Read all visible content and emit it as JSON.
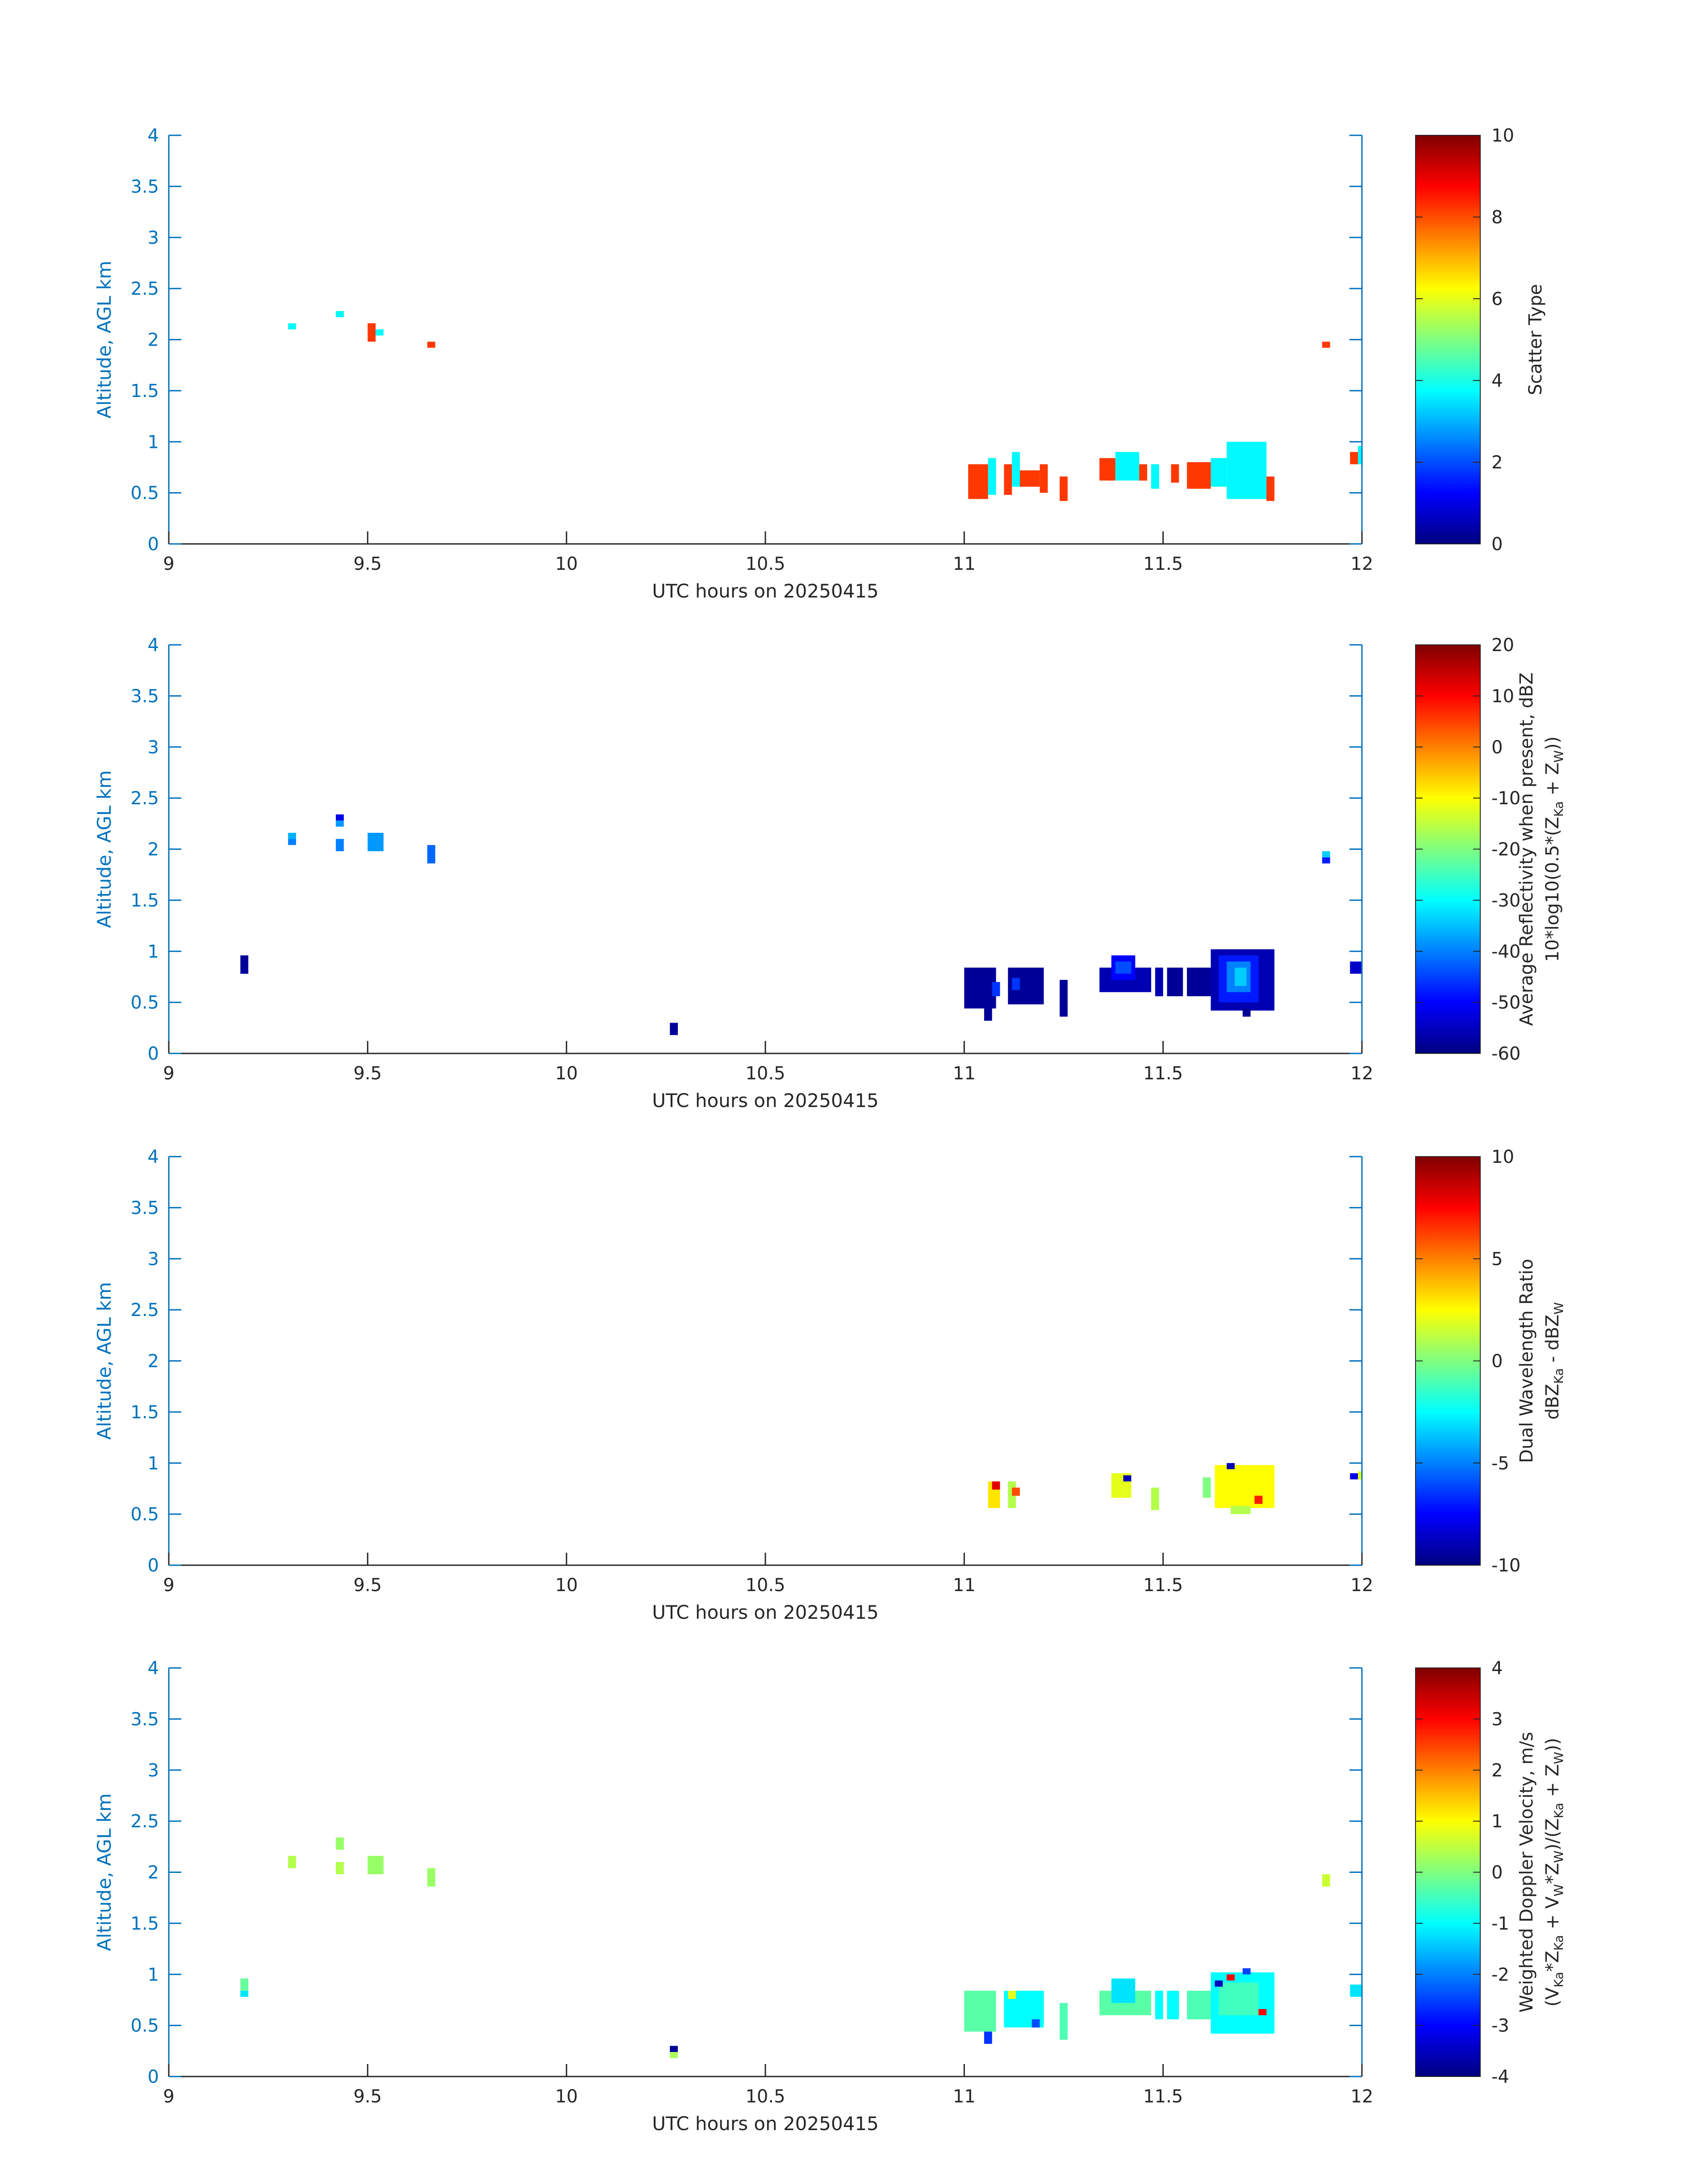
{
  "chart_data": [
    {
      "type": "heatmap",
      "xlabel": "UTC hours on 20250415",
      "ylabel": "Altitude, AGL km",
      "xlim": [
        9,
        12
      ],
      "ylim": [
        0,
        4
      ],
      "x_ticks": [
        "9",
        "9.5",
        "10",
        "10.5",
        "11",
        "11.5",
        "12"
      ],
      "y_ticks": [
        "0",
        "0.5",
        "1",
        "1.5",
        "2",
        "2.5",
        "3",
        "3.5",
        "4"
      ],
      "colorbar": {
        "label_lines": [
          {
            "text": "Scatter Type"
          }
        ],
        "range": [
          0,
          10
        ],
        "ticks": [
          "0",
          "2",
          "4",
          "6",
          "8",
          "10"
        ]
      },
      "cells": [
        {
          "x0": 9.3,
          "x1": 9.32,
          "y0": 2.1,
          "y1": 2.16,
          "v": 3.7
        },
        {
          "x0": 9.42,
          "x1": 9.44,
          "y0": 2.22,
          "y1": 2.28,
          "v": 3.7
        },
        {
          "x0": 9.5,
          "x1": 9.52,
          "y0": 1.98,
          "y1": 2.16,
          "v": 8.2
        },
        {
          "x0": 9.52,
          "x1": 9.54,
          "y0": 2.04,
          "y1": 2.1,
          "v": 3.7
        },
        {
          "x0": 9.65,
          "x1": 9.67,
          "y0": 1.92,
          "y1": 1.98,
          "v": 8.2
        },
        {
          "x0": 11.01,
          "x1": 11.06,
          "y0": 0.44,
          "y1": 0.78,
          "v": 8.2
        },
        {
          "x0": 11.06,
          "x1": 11.08,
          "y0": 0.48,
          "y1": 0.84,
          "v": 3.7
        },
        {
          "x0": 11.1,
          "x1": 11.12,
          "y0": 0.48,
          "y1": 0.78,
          "v": 8.2
        },
        {
          "x0": 11.12,
          "x1": 11.14,
          "y0": 0.56,
          "y1": 0.9,
          "v": 3.7
        },
        {
          "x0": 11.14,
          "x1": 11.19,
          "y0": 0.56,
          "y1": 0.72,
          "v": 8.2
        },
        {
          "x0": 11.19,
          "x1": 11.21,
          "y0": 0.5,
          "y1": 0.78,
          "v": 8.2
        },
        {
          "x0": 11.24,
          "x1": 11.26,
          "y0": 0.42,
          "y1": 0.66,
          "v": 8.2
        },
        {
          "x0": 11.34,
          "x1": 11.38,
          "y0": 0.62,
          "y1": 0.84,
          "v": 8.2
        },
        {
          "x0": 11.38,
          "x1": 11.44,
          "y0": 0.62,
          "y1": 0.9,
          "v": 3.7
        },
        {
          "x0": 11.44,
          "x1": 11.46,
          "y0": 0.62,
          "y1": 0.78,
          "v": 8.2
        },
        {
          "x0": 11.47,
          "x1": 11.49,
          "y0": 0.54,
          "y1": 0.78,
          "v": 3.7
        },
        {
          "x0": 11.52,
          "x1": 11.54,
          "y0": 0.6,
          "y1": 0.78,
          "v": 8.2
        },
        {
          "x0": 11.56,
          "x1": 11.62,
          "y0": 0.54,
          "y1": 0.8,
          "v": 8.2
        },
        {
          "x0": 11.62,
          "x1": 11.66,
          "y0": 0.56,
          "y1": 0.84,
          "v": 3.7
        },
        {
          "x0": 11.66,
          "x1": 11.76,
          "y0": 0.44,
          "y1": 1.0,
          "v": 3.7
        },
        {
          "x0": 11.76,
          "x1": 11.78,
          "y0": 0.42,
          "y1": 0.66,
          "v": 8.2
        },
        {
          "x0": 11.9,
          "x1": 11.92,
          "y0": 1.92,
          "y1": 1.98,
          "v": 8.2
        },
        {
          "x0": 11.97,
          "x1": 11.99,
          "y0": 0.78,
          "y1": 0.9,
          "v": 8.2
        },
        {
          "x0": 11.99,
          "x1": 12.0,
          "y0": 0.78,
          "y1": 0.96,
          "v": 3.7
        }
      ]
    },
    {
      "type": "heatmap",
      "xlabel": "UTC hours on 20250415",
      "ylabel": "Altitude, AGL km",
      "xlim": [
        9,
        12
      ],
      "ylim": [
        0,
        4
      ],
      "x_ticks": [
        "9",
        "9.5",
        "10",
        "10.5",
        "11",
        "11.5",
        "12"
      ],
      "y_ticks": [
        "0",
        "0.5",
        "1",
        "1.5",
        "2",
        "2.5",
        "3",
        "3.5",
        "4"
      ],
      "colorbar": {
        "label_lines": [
          {
            "text": "Average Reflectivity when present, dBZ"
          },
          {
            "text": "10*log10(0.5*(Z",
            "parts": [
              [
                "Ka",
                " + Z"
              ],
              [
                "W",
                "))"
              ]
            ]
          }
        ],
        "range": [
          -60,
          20
        ],
        "ticks": [
          "-60",
          "-50",
          "-40",
          "-30",
          "-20",
          "-10",
          "0",
          "10",
          "20"
        ]
      },
      "cells": [
        {
          "x0": 9.18,
          "x1": 9.2,
          "y0": 0.78,
          "y1": 0.96,
          "v": -58
        },
        {
          "x0": 9.3,
          "x1": 9.32,
          "y0": 2.04,
          "y1": 2.1,
          "v": -40
        },
        {
          "x0": 9.3,
          "x1": 9.32,
          "y0": 2.1,
          "y1": 2.16,
          "v": -36
        },
        {
          "x0": 9.42,
          "x1": 9.44,
          "y0": 1.98,
          "y1": 2.1,
          "v": -40
        },
        {
          "x0": 9.42,
          "x1": 9.44,
          "y0": 2.22,
          "y1": 2.28,
          "v": -38
        },
        {
          "x0": 9.42,
          "x1": 9.44,
          "y0": 2.28,
          "y1": 2.34,
          "v": -52
        },
        {
          "x0": 9.5,
          "x1": 9.54,
          "y0": 1.98,
          "y1": 2.16,
          "v": -38
        },
        {
          "x0": 9.65,
          "x1": 9.67,
          "y0": 1.86,
          "y1": 2.04,
          "v": -42
        },
        {
          "x0": 10.26,
          "x1": 10.28,
          "y0": 0.18,
          "y1": 0.3,
          "v": -58
        },
        {
          "x0": 11.0,
          "x1": 11.08,
          "y0": 0.44,
          "y1": 0.84,
          "v": -58
        },
        {
          "x0": 11.05,
          "x1": 11.07,
          "y0": 0.32,
          "y1": 0.5,
          "v": -58
        },
        {
          "x0": 11.07,
          "x1": 11.09,
          "y0": 0.56,
          "y1": 0.7,
          "v": -46
        },
        {
          "x0": 11.11,
          "x1": 11.2,
          "y0": 0.48,
          "y1": 0.84,
          "v": -58
        },
        {
          "x0": 11.12,
          "x1": 11.14,
          "y0": 0.62,
          "y1": 0.74,
          "v": -46
        },
        {
          "x0": 11.24,
          "x1": 11.26,
          "y0": 0.36,
          "y1": 0.72,
          "v": -58
        },
        {
          "x0": 11.34,
          "x1": 11.47,
          "y0": 0.6,
          "y1": 0.84,
          "v": -56
        },
        {
          "x0": 11.37,
          "x1": 11.43,
          "y0": 0.72,
          "y1": 0.96,
          "v": -50
        },
        {
          "x0": 11.38,
          "x1": 11.42,
          "y0": 0.78,
          "y1": 0.9,
          "v": -44
        },
        {
          "x0": 11.48,
          "x1": 11.5,
          "y0": 0.56,
          "y1": 0.84,
          "v": -56
        },
        {
          "x0": 11.51,
          "x1": 11.55,
          "y0": 0.56,
          "y1": 0.84,
          "v": -58
        },
        {
          "x0": 11.56,
          "x1": 11.63,
          "y0": 0.56,
          "y1": 0.84,
          "v": -58
        },
        {
          "x0": 11.62,
          "x1": 11.78,
          "y0": 0.42,
          "y1": 1.02,
          "v": -56
        },
        {
          "x0": 11.64,
          "x1": 11.74,
          "y0": 0.5,
          "y1": 0.96,
          "v": -48
        },
        {
          "x0": 11.66,
          "x1": 11.72,
          "y0": 0.6,
          "y1": 0.9,
          "v": -40
        },
        {
          "x0": 11.68,
          "x1": 11.71,
          "y0": 0.66,
          "y1": 0.84,
          "v": -34
        },
        {
          "x0": 11.7,
          "x1": 11.72,
          "y0": 0.36,
          "y1": 0.44,
          "v": -58
        },
        {
          "x0": 11.9,
          "x1": 11.92,
          "y0": 1.86,
          "y1": 1.92,
          "v": -48
        },
        {
          "x0": 11.9,
          "x1": 11.92,
          "y0": 1.92,
          "y1": 1.98,
          "v": -34
        },
        {
          "x0": 11.97,
          "x1": 12.0,
          "y0": 0.78,
          "y1": 0.9,
          "v": -54
        }
      ]
    },
    {
      "type": "heatmap",
      "xlabel": "UTC hours on 20250415",
      "ylabel": "Altitude, AGL km",
      "xlim": [
        9,
        12
      ],
      "ylim": [
        0,
        4
      ],
      "x_ticks": [
        "9",
        "9.5",
        "10",
        "10.5",
        "11",
        "11.5",
        "12"
      ],
      "y_ticks": [
        "0",
        "0.5",
        "1",
        "1.5",
        "2",
        "2.5",
        "3",
        "3.5",
        "4"
      ],
      "colorbar": {
        "label_lines": [
          {
            "text": "Dual Wavelength Ratio"
          },
          {
            "text": "dBZ",
            "parts": [
              [
                "Ka",
                " - dBZ"
              ],
              [
                "W",
                ""
              ]
            ]
          }
        ],
        "range": [
          -10,
          10
        ],
        "ticks": [
          "-10",
          "-5",
          "0",
          "5",
          "10"
        ]
      },
      "cells": [
        {
          "x0": 11.06,
          "x1": 11.09,
          "y0": 0.56,
          "y1": 0.82,
          "v": 3
        },
        {
          "x0": 11.07,
          "x1": 11.09,
          "y0": 0.74,
          "y1": 0.82,
          "v": 8
        },
        {
          "x0": 11.11,
          "x1": 11.13,
          "y0": 0.56,
          "y1": 0.82,
          "v": 1
        },
        {
          "x0": 11.12,
          "x1": 11.14,
          "y0": 0.68,
          "y1": 0.76,
          "v": 6
        },
        {
          "x0": 11.37,
          "x1": 11.42,
          "y0": 0.66,
          "y1": 0.9,
          "v": 2
        },
        {
          "x0": 11.4,
          "x1": 11.42,
          "y0": 0.82,
          "y1": 0.88,
          "v": -9
        },
        {
          "x0": 11.47,
          "x1": 11.49,
          "y0": 0.54,
          "y1": 0.76,
          "v": 1
        },
        {
          "x0": 11.6,
          "x1": 11.62,
          "y0": 0.66,
          "y1": 0.86,
          "v": 0
        },
        {
          "x0": 11.63,
          "x1": 11.78,
          "y0": 0.56,
          "y1": 0.98,
          "v": 2.5
        },
        {
          "x0": 11.67,
          "x1": 11.72,
          "y0": 0.5,
          "y1": 0.58,
          "v": 1
        },
        {
          "x0": 11.66,
          "x1": 11.68,
          "y0": 0.94,
          "y1": 1.0,
          "v": -9
        },
        {
          "x0": 11.73,
          "x1": 11.75,
          "y0": 0.6,
          "y1": 0.68,
          "v": 7
        },
        {
          "x0": 11.97,
          "x1": 11.99,
          "y0": 0.84,
          "y1": 0.9,
          "v": -8
        },
        {
          "x0": 11.99,
          "x1": 12.0,
          "y0": 0.84,
          "y1": 0.92,
          "v": 2
        }
      ]
    },
    {
      "type": "heatmap",
      "xlabel": "UTC hours on 20250415",
      "ylabel": "Altitude, AGL km",
      "xlim": [
        9,
        12
      ],
      "ylim": [
        0,
        4
      ],
      "x_ticks": [
        "9",
        "9.5",
        "10",
        "10.5",
        "11",
        "11.5",
        "12"
      ],
      "y_ticks": [
        "0",
        "0.5",
        "1",
        "1.5",
        "2",
        "2.5",
        "3",
        "3.5",
        "4"
      ],
      "colorbar": {
        "label_lines": [
          {
            "text": "Weighted Doppler Velocity, m/s"
          },
          {
            "text": "(V",
            "parts": [
              [
                "Ka",
                "*Z"
              ],
              [
                "Ka",
                " + V"
              ],
              [
                "W",
                "*Z"
              ],
              [
                "W",
                ")/(Z"
              ],
              [
                "Ka",
                " + Z"
              ],
              [
                "W",
                "))"
              ]
            ]
          }
        ],
        "range": [
          -4,
          4
        ],
        "ticks": [
          "-4",
          "-3",
          "-2",
          "-1",
          "0",
          "1",
          "2",
          "3",
          "4"
        ]
      },
      "cells": [
        {
          "x0": 9.18,
          "x1": 9.2,
          "y0": 0.84,
          "y1": 0.96,
          "v": -0.2
        },
        {
          "x0": 9.18,
          "x1": 9.2,
          "y0": 0.78,
          "y1": 0.84,
          "v": -1.2
        },
        {
          "x0": 9.3,
          "x1": 9.32,
          "y0": 2.04,
          "y1": 2.16,
          "v": 0.4
        },
        {
          "x0": 9.42,
          "x1": 9.44,
          "y0": 1.98,
          "y1": 2.1,
          "v": 0.4
        },
        {
          "x0": 9.42,
          "x1": 9.44,
          "y0": 2.22,
          "y1": 2.34,
          "v": 0.2
        },
        {
          "x0": 9.5,
          "x1": 9.54,
          "y0": 1.98,
          "y1": 2.16,
          "v": 0.2
        },
        {
          "x0": 9.65,
          "x1": 9.67,
          "y0": 1.86,
          "y1": 2.04,
          "v": 0.2
        },
        {
          "x0": 10.26,
          "x1": 10.28,
          "y0": 0.24,
          "y1": 0.3,
          "v": -3.8
        },
        {
          "x0": 10.26,
          "x1": 10.28,
          "y0": 0.18,
          "y1": 0.24,
          "v": 0.3
        },
        {
          "x0": 11.0,
          "x1": 11.08,
          "y0": 0.44,
          "y1": 0.84,
          "v": -0.3
        },
        {
          "x0": 11.05,
          "x1": 11.07,
          "y0": 0.32,
          "y1": 0.44,
          "v": -2.6
        },
        {
          "x0": 11.1,
          "x1": 11.2,
          "y0": 0.48,
          "y1": 0.84,
          "v": -1.0
        },
        {
          "x0": 11.11,
          "x1": 11.13,
          "y0": 0.76,
          "y1": 0.84,
          "v": 0.8
        },
        {
          "x0": 11.17,
          "x1": 11.19,
          "y0": 0.48,
          "y1": 0.56,
          "v": -2.4
        },
        {
          "x0": 11.24,
          "x1": 11.26,
          "y0": 0.36,
          "y1": 0.72,
          "v": -0.4
        },
        {
          "x0": 11.34,
          "x1": 11.47,
          "y0": 0.6,
          "y1": 0.84,
          "v": -0.3
        },
        {
          "x0": 11.37,
          "x1": 11.43,
          "y0": 0.72,
          "y1": 0.96,
          "v": -1.2
        },
        {
          "x0": 11.48,
          "x1": 11.5,
          "y0": 0.56,
          "y1": 0.84,
          "v": -1.0
        },
        {
          "x0": 11.51,
          "x1": 11.54,
          "y0": 0.56,
          "y1": 0.84,
          "v": -1.0
        },
        {
          "x0": 11.56,
          "x1": 11.63,
          "y0": 0.56,
          "y1": 0.84,
          "v": -0.4
        },
        {
          "x0": 11.62,
          "x1": 11.78,
          "y0": 0.42,
          "y1": 1.02,
          "v": -1.0
        },
        {
          "x0": 11.64,
          "x1": 11.74,
          "y0": 0.6,
          "y1": 0.92,
          "v": -0.5
        },
        {
          "x0": 11.66,
          "x1": 11.68,
          "y0": 0.94,
          "y1": 1.0,
          "v": 3.0
        },
        {
          "x0": 11.63,
          "x1": 11.65,
          "y0": 0.88,
          "y1": 0.94,
          "v": -3.5
        },
        {
          "x0": 11.7,
          "x1": 11.72,
          "y0": 1.0,
          "y1": 1.06,
          "v": -2.5
        },
        {
          "x0": 11.74,
          "x1": 11.76,
          "y0": 0.6,
          "y1": 0.66,
          "v": 3.0
        },
        {
          "x0": 11.9,
          "x1": 11.92,
          "y0": 1.86,
          "y1": 1.98,
          "v": 0.6
        },
        {
          "x0": 11.97,
          "x1": 12.0,
          "y0": 0.78,
          "y1": 0.9,
          "v": -1.2
        }
      ]
    }
  ]
}
